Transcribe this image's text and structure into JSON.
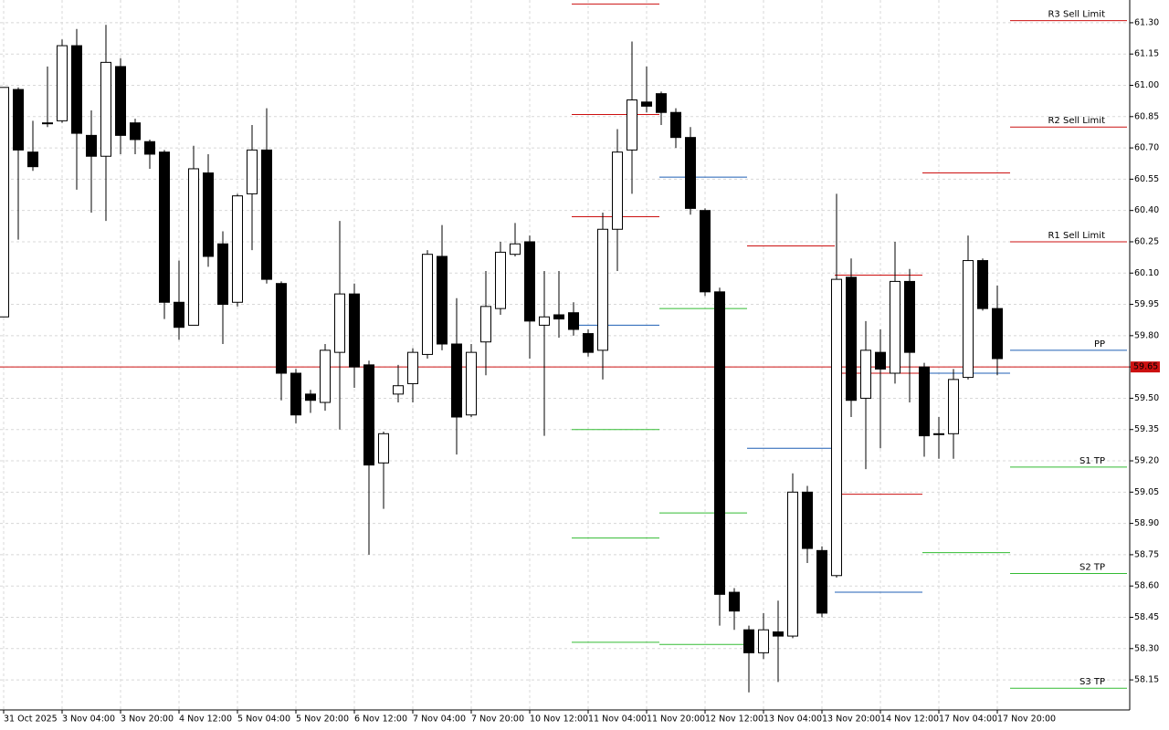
{
  "chart_data": {
    "type": "candlestick",
    "categories": [
      "31 Oct 2025",
      null,
      null,
      null,
      "3 Nov 04:00",
      null,
      null,
      null,
      "3 Nov 20:00",
      null,
      null,
      null,
      "4 Nov 12:00",
      null,
      null,
      null,
      "5 Nov 04:00",
      null,
      null,
      null,
      "5 Nov 20:00",
      null,
      null,
      null,
      "6 Nov 12:00",
      null,
      null,
      null,
      "7 Nov 04:00",
      null,
      null,
      null,
      "7 Nov 20:00",
      null,
      null,
      null,
      "10 Nov 12:00",
      null,
      null,
      null,
      "11 Nov 04:00",
      null,
      null,
      null,
      "11 Nov 20:00",
      null,
      null,
      null,
      "12 Nov 12:00",
      null,
      null,
      null,
      "13 Nov 04:00",
      null,
      null,
      null,
      "13 Nov 20:00",
      null,
      null,
      null,
      "14 Nov 12:00",
      null,
      null,
      null,
      "17 Nov 04:00",
      null,
      null,
      null,
      "17 Nov 20:00"
    ],
    "open": [
      59.89,
      60.98,
      60.68,
      60.82,
      60.83,
      61.19,
      60.76,
      60.66,
      61.09,
      60.82,
      60.73,
      60.68,
      59.96,
      59.85,
      60.58,
      60.24,
      59.96,
      60.48,
      60.69,
      60.05,
      59.62,
      59.52,
      59.48,
      59.72,
      60.0,
      59.66,
      59.19,
      59.52,
      59.57,
      59.71,
      60.18,
      59.76,
      59.42,
      59.77,
      59.93,
      60.19,
      60.25,
      59.85,
      59.9,
      59.91,
      59.81,
      59.73,
      60.31,
      60.69,
      60.92,
      60.96,
      60.87,
      60.75,
      60.4,
      60.01,
      58.57,
      58.39,
      58.28,
      58.38,
      58.36,
      59.05,
      58.77,
      58.65,
      60.08,
      59.5,
      59.72,
      59.62,
      60.06,
      59.65,
      59.33,
      59.33,
      59.6,
      60.16,
      59.93
    ],
    "high": [
      60.99,
      60.99,
      60.83,
      61.09,
      61.22,
      61.27,
      60.88,
      61.29,
      61.13,
      60.84,
      60.74,
      60.69,
      60.16,
      60.71,
      60.67,
      60.3,
      60.48,
      60.81,
      60.89,
      60.06,
      59.64,
      59.54,
      59.76,
      60.35,
      60.05,
      59.68,
      59.34,
      59.66,
      59.74,
      60.21,
      60.33,
      59.98,
      59.76,
      60.11,
      60.25,
      60.34,
      60.28,
      60.11,
      60.11,
      59.96,
      59.83,
      60.39,
      60.79,
      61.21,
      61.09,
      60.97,
      60.89,
      60.8,
      60.41,
      60.03,
      58.59,
      58.41,
      58.47,
      58.53,
      59.14,
      59.08,
      58.79,
      60.48,
      60.17,
      59.87,
      59.83,
      60.25,
      60.12,
      59.67,
      59.41,
      59.64,
      60.28,
      60.17,
      60.04
    ],
    "low": [
      59.89,
      60.26,
      60.59,
      60.8,
      60.82,
      60.5,
      60.39,
      60.35,
      60.67,
      60.67,
      60.6,
      59.88,
      59.78,
      59.85,
      60.13,
      59.76,
      59.94,
      60.21,
      60.05,
      59.49,
      59.38,
      59.43,
      59.44,
      59.35,
      59.55,
      58.75,
      58.97,
      59.48,
      59.48,
      59.69,
      59.73,
      59.23,
      59.41,
      59.61,
      59.9,
      60.18,
      59.69,
      59.32,
      59.79,
      59.8,
      59.7,
      59.59,
      60.11,
      60.48,
      60.87,
      60.81,
      60.7,
      60.38,
      59.99,
      58.41,
      58.39,
      58.09,
      58.25,
      58.14,
      58.35,
      58.71,
      58.45,
      58.64,
      59.41,
      59.16,
      59.26,
      59.57,
      59.48,
      59.22,
      59.21,
      59.21,
      59.59,
      59.92,
      59.61
    ],
    "close": [
      60.99,
      60.69,
      60.61,
      60.82,
      61.19,
      60.77,
      60.66,
      61.11,
      60.76,
      60.74,
      60.67,
      59.96,
      59.84,
      60.6,
      60.18,
      59.95,
      60.47,
      60.69,
      60.07,
      59.62,
      59.42,
      59.49,
      59.73,
      60.0,
      59.65,
      59.18,
      59.33,
      59.56,
      59.72,
      60.19,
      59.76,
      59.41,
      59.72,
      59.94,
      60.2,
      60.24,
      59.87,
      59.89,
      59.88,
      59.83,
      59.72,
      60.31,
      60.68,
      60.93,
      60.9,
      60.87,
      60.75,
      60.41,
      60.01,
      58.56,
      58.48,
      58.28,
      58.39,
      58.36,
      59.05,
      58.78,
      58.47,
      60.07,
      59.49,
      59.73,
      59.64,
      60.06,
      59.72,
      59.32,
      59.33,
      59.59,
      60.16,
      59.93,
      59.69
    ],
    "up_color": "#ffffff",
    "down_color": "#000000",
    "levels": [
      {
        "name": "R3 Sell Limit",
        "color": "#cc1010",
        "values": [
          61.39,
          null,
          null,
          60.09,
          null,
          61.31
        ]
      },
      {
        "name": "R2 Sell Limit",
        "color": "#cc1010",
        "values": [
          60.86,
          null,
          null,
          59.62,
          null,
          60.8
        ]
      },
      {
        "name": "R1 Sell Limit",
        "color": "#cc1010",
        "values": [
          60.37,
          null,
          60.23,
          59.04,
          60.58,
          60.25
        ]
      },
      {
        "name": "PP",
        "color": "#1f5fb4",
        "values": [
          59.85,
          60.56,
          59.26,
          58.57,
          59.62,
          59.73
        ]
      },
      {
        "name": "S1 TP",
        "color": "#33bb33",
        "values": [
          59.35,
          59.93,
          null,
          null,
          58.76,
          59.17
        ]
      },
      {
        "name": "S2 TP",
        "color": "#33bb33",
        "values": [
          58.83,
          58.95,
          null,
          null,
          null,
          58.66
        ]
      },
      {
        "name": "S3 TP",
        "color": "#33bb33",
        "values": [
          58.33,
          58.32,
          null,
          null,
          null,
          58.11
        ]
      }
    ],
    "bid": {
      "value": 59.65,
      "label": "59.65"
    },
    "bid_color": "#cc1010",
    "ylim": [
      58.006,
      61.409
    ],
    "yticks": [
      {
        "value": 61.3,
        "label": "61.30"
      },
      {
        "value": 61.15,
        "label": "61.15"
      },
      {
        "value": 61.0,
        "label": "61.00"
      },
      {
        "value": 60.85,
        "label": "60.85"
      },
      {
        "value": 60.7,
        "label": "60.70"
      },
      {
        "value": 60.55,
        "label": "60.55"
      },
      {
        "value": 60.4,
        "label": "60.40"
      },
      {
        "value": 60.25,
        "label": "60.25"
      },
      {
        "value": 60.1,
        "label": "60.10"
      },
      {
        "value": 59.95,
        "label": "59.95"
      },
      {
        "value": 59.8,
        "label": "59.80"
      },
      {
        "value": 59.65,
        "label": "59.65"
      },
      {
        "value": 59.5,
        "label": "59.50"
      },
      {
        "value": 59.35,
        "label": "59.35"
      },
      {
        "value": 59.2,
        "label": "59.20"
      },
      {
        "value": 59.05,
        "label": "59.05"
      },
      {
        "value": 58.9,
        "label": "58.90"
      },
      {
        "value": 58.75,
        "label": "58.75"
      },
      {
        "value": 58.6,
        "label": "58.60"
      },
      {
        "value": 58.45,
        "label": "58.45"
      },
      {
        "value": 58.3,
        "label": "58.30"
      },
      {
        "value": 58.15,
        "label": "58.15"
      }
    ],
    "grid": true
  }
}
